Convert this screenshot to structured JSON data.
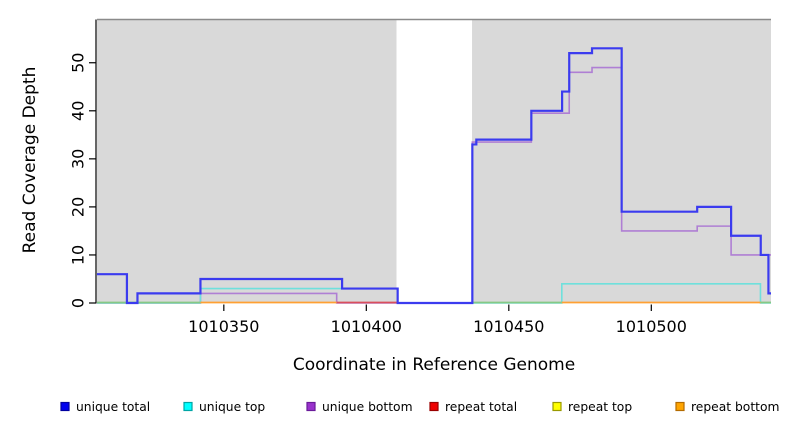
{
  "chart_data": {
    "type": "line",
    "subtype": "step-coverage",
    "title": "",
    "xlabel": "Coordinate in Reference Genome",
    "ylabel": "Read Coverage Depth",
    "xlim": [
      1010305.5,
      1010542
    ],
    "ylim": [
      0,
      59
    ],
    "grid": "off",
    "x_ticks": [
      1010350,
      1010400,
      1010450,
      1010500
    ],
    "y_ticks": [
      0,
      10,
      20,
      30,
      40,
      50
    ],
    "background_bands": [
      {
        "from": 1010305.5,
        "to": 1010410.6,
        "color": "#D9D9D9"
      },
      {
        "from": 1010437.1,
        "to": 1010542.0,
        "color": "#D9D9D9"
      }
    ],
    "series": [
      {
        "name": "unique bottom",
        "color": "#AF7FD4",
        "width": 1.6,
        "steps": [
          [
            1010305.5,
            0
          ],
          [
            1010341.8,
            2
          ],
          [
            1010389.6,
            0
          ],
          [
            1010437.2,
            33.5
          ],
          [
            1010457.9,
            39.5
          ],
          [
            1010471.2,
            48
          ],
          [
            1010479.2,
            49
          ],
          [
            1010489.6,
            15
          ],
          [
            1010516.1,
            16
          ],
          [
            1010528,
            10
          ]
        ]
      },
      {
        "name": "unique top",
        "color": "#6FE0DC",
        "width": 1.6,
        "steps": [
          [
            1010305.5,
            0
          ],
          [
            1010341.8,
            3
          ],
          [
            1010411,
            0
          ],
          [
            1010468.6,
            4
          ],
          [
            1010538.3,
            0
          ]
        ]
      },
      {
        "name": "unique total",
        "color": "#3B3BEF",
        "width": 2.2,
        "steps": [
          [
            1010305.5,
            6
          ],
          [
            1010316,
            0
          ],
          [
            1010319.7,
            2
          ],
          [
            1010341.8,
            5
          ],
          [
            1010391.5,
            3
          ],
          [
            1010411,
            0
          ],
          [
            1010437.2,
            33
          ],
          [
            1010438.6,
            34
          ],
          [
            1010457.9,
            40
          ],
          [
            1010468.7,
            44
          ],
          [
            1010471.2,
            52
          ],
          [
            1010479.2,
            53
          ],
          [
            1010489.6,
            19
          ],
          [
            1010516.1,
            20
          ],
          [
            1010528,
            14
          ],
          [
            1010538.4,
            10
          ],
          [
            1010541.1,
            2
          ]
        ]
      }
    ],
    "zero_line_segments": [
      {
        "color": "#85C985",
        "from": 1010305.5,
        "to": 1010341.8
      },
      {
        "color": "#FFA033",
        "from": 1010341.8,
        "to": 1010389.6
      },
      {
        "color": "#D94F5C",
        "from": 1010389.6,
        "to": 1010411.0
      },
      {
        "color": "#85C985",
        "from": 1010437.2,
        "to": 1010468.6
      },
      {
        "color": "#FFA033",
        "from": 1010468.6,
        "to": 1010538.3
      },
      {
        "color": "#85C985",
        "from": 1010538.3,
        "to": 1010542.0
      }
    ],
    "legend": {
      "position": "bottom",
      "entries": [
        {
          "label": "unique total",
          "fill": "#0000EE",
          "border": "#0000A0"
        },
        {
          "label": "unique top",
          "fill": "#00FFFF",
          "border": "#00A5A5"
        },
        {
          "label": "unique bottom",
          "fill": "#9932CC",
          "border": "#6A1B9A"
        },
        {
          "label": "repeat total",
          "fill": "#EE0000",
          "border": "#990000"
        },
        {
          "label": "repeat top",
          "fill": "#FFFF00",
          "border": "#999900"
        },
        {
          "label": "repeat bottom",
          "fill": "#FFA500",
          "border": "#B36B00"
        }
      ]
    },
    "colors": {
      "band_gray": "#D9D9D9",
      "plot_top_border": "#8A8A8A",
      "axis": "#000000"
    }
  }
}
